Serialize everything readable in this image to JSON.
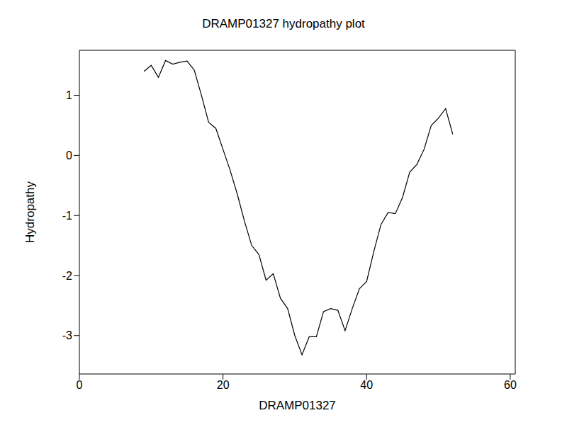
{
  "chart_data": {
    "type": "line",
    "title": "DRAMP01327 hydropathy plot",
    "x_label": "DRAMP01327",
    "y_label": "Hydropathy",
    "x": [
      9,
      10,
      11,
      12,
      13,
      14,
      15,
      16,
      17,
      18,
      19,
      20,
      21,
      22,
      23,
      24,
      25,
      26,
      27,
      28,
      29,
      30,
      31,
      32,
      33,
      34,
      35,
      36,
      37,
      38,
      39,
      40,
      41,
      42,
      43,
      44,
      45,
      46,
      47,
      48,
      49,
      50,
      51,
      52
    ],
    "values": [
      1.4,
      1.5,
      1.3,
      1.58,
      1.52,
      1.55,
      1.57,
      1.42,
      1.0,
      0.55,
      0.45,
      0.1,
      -0.25,
      -0.65,
      -1.1,
      -1.5,
      -1.65,
      -2.08,
      -1.97,
      -2.38,
      -2.55,
      -3.0,
      -3.32,
      -3.02,
      -3.02,
      -2.6,
      -2.55,
      -2.58,
      -2.92,
      -2.55,
      -2.22,
      -2.1,
      -1.6,
      -1.15,
      -0.95,
      -0.97,
      -0.7,
      -0.28,
      -0.15,
      0.1,
      0.5,
      0.62,
      0.78,
      0.35
    ],
    "color": "#000000",
    "xlim": [
      0,
      60.7
    ],
    "xticks": [
      0,
      20,
      40,
      60
    ],
    "ylim": [
      -3.64,
      1.75
    ],
    "yticks": [
      -3,
      -2,
      -1,
      0,
      1
    ],
    "grid": false
  }
}
